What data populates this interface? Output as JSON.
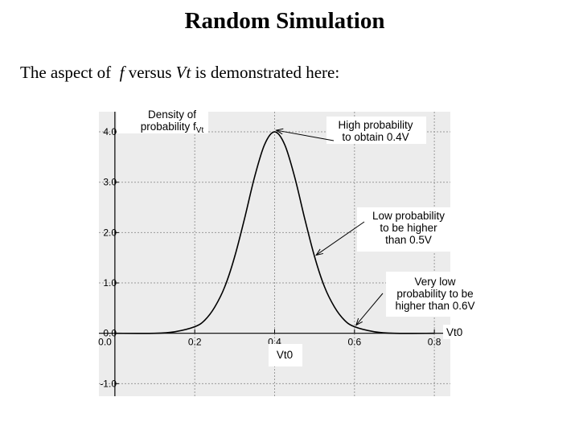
{
  "title": "Random Simulation",
  "subtitle": {
    "before": "The aspect of",
    "var1": "f",
    "middle": "versus",
    "var2": "Vt",
    "after": "is demonstrated here:"
  },
  "chart_data": {
    "type": "line",
    "title": "",
    "ylabel_lines": [
      "Density of",
      "probability f"
    ],
    "ylabel_subscript": "Vt",
    "xlabel": "Vt0",
    "xaxis_end_label": "Vt0",
    "xlim": [
      -0.04,
      0.84
    ],
    "ylim": [
      -1.25,
      4.4
    ],
    "x_ticks": [
      {
        "value": 0.0,
        "label": "0.0"
      },
      {
        "value": 0.2,
        "label": "0.2"
      },
      {
        "value": 0.4,
        "label": "0.4"
      },
      {
        "value": 0.6,
        "label": "0.6"
      },
      {
        "value": 0.8,
        "label": "0.8"
      }
    ],
    "y_ticks": [
      {
        "value": 4.0,
        "label": "4.0"
      },
      {
        "value": 3.0,
        "label": "3.0"
      },
      {
        "value": 2.0,
        "label": "2.0"
      },
      {
        "value": 1.0,
        "label": "1.0"
      },
      {
        "value": 0.0,
        "label": "0.0"
      },
      {
        "value": -1.0,
        "label": "-1.0"
      }
    ],
    "grid": true,
    "series": [
      {
        "x": [
          0.0,
          0.1,
          0.15,
          0.2,
          0.225,
          0.25,
          0.275,
          0.3,
          0.325,
          0.35,
          0.375,
          0.4,
          0.425,
          0.45,
          0.475,
          0.5,
          0.525,
          0.55,
          0.575,
          0.6,
          0.65,
          0.7,
          0.8
        ],
        "y": [
          0.0,
          0.0,
          0.03,
          0.13,
          0.26,
          0.52,
          0.92,
          1.52,
          2.29,
          3.11,
          3.75,
          4.0,
          3.75,
          3.11,
          2.29,
          1.52,
          0.92,
          0.52,
          0.26,
          0.13,
          0.03,
          0.0,
          0.0
        ]
      }
    ],
    "annotations": [
      {
        "lines": [
          "High probability",
          "to obtain 0.4V"
        ],
        "point": [
          0.4,
          4.0
        ]
      },
      {
        "lines": [
          "Low probability",
          "to be higher",
          "than 0.5V"
        ],
        "point": [
          0.5,
          1.52
        ]
      },
      {
        "lines": [
          "Very low",
          "probability to be",
          "higher than 0.6V"
        ],
        "point": [
          0.6,
          0.13
        ]
      }
    ],
    "colors": {
      "panel": "#ececec",
      "grid": "#9a9a9a",
      "line": "#000000"
    }
  }
}
